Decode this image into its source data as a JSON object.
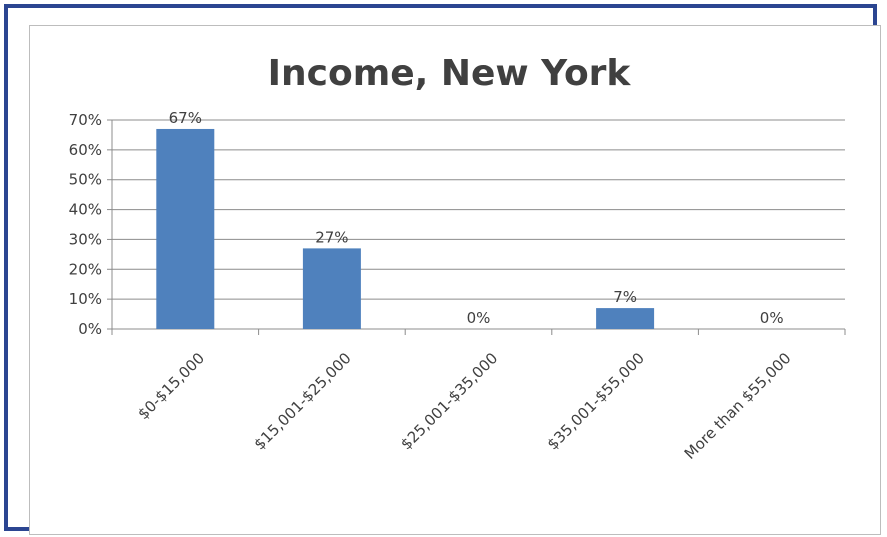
{
  "chart_data": {
    "type": "bar",
    "title": "Income, New York",
    "categories": [
      "$0-$15,000",
      "$15,001-$25,000",
      "$25,001-$35,000",
      "$35,001-$55,000",
      "More than $55,000"
    ],
    "values": [
      67,
      27,
      0,
      7,
      0
    ],
    "data_labels": [
      "67%",
      "27%",
      "0%",
      "7%",
      "0%"
    ],
    "y_ticks": [
      "0%",
      "10%",
      "20%",
      "30%",
      "40%",
      "50%",
      "60%",
      "70%"
    ],
    "ylim": [
      0,
      70
    ],
    "grid": true,
    "legend": "none",
    "bar_color": "#4f81bd",
    "frame_color": "#2b4591"
  }
}
